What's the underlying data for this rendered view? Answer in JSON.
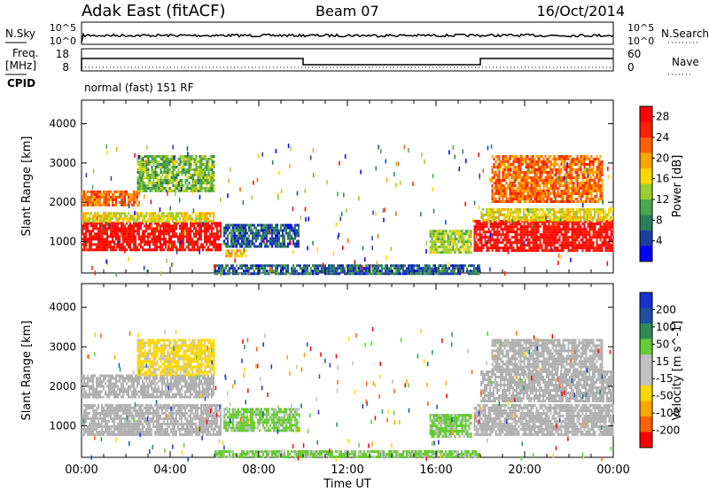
{
  "header": {
    "station": "Adak East (fitACF)",
    "beam": "Beam 07",
    "date": "16/Oct/2014"
  },
  "side_labels": {
    "nsky": "N.Sky",
    "nsearch": "N.Search",
    "freq": "Freq.",
    "freq_unit": "[MHz]",
    "cpid": "CPID",
    "nave": "Nave"
  },
  "strip_ticks": {
    "noise_left": [
      "10^5",
      "10^0"
    ],
    "noise_right": [
      "10^5",
      "10^0"
    ],
    "freq_left": [
      "18",
      "8"
    ],
    "nave_right": [
      "60",
      "0"
    ]
  },
  "cpid_text": "normal (fast) 151 RF",
  "colors": {
    "power": [
      "#0000ff",
      "#1e3fa0",
      "#2e7d5a",
      "#4ca64c",
      "#9acd32",
      "#ffd700",
      "#ffa500",
      "#ff6000",
      "#ff2000",
      "#ff0000"
    ],
    "velocity": [
      "#ff0000",
      "#ff6000",
      "#ffa500",
      "#ffd700",
      "#c0c0c0",
      "#c0c0c0",
      "#66cc33",
      "#2e8b57",
      "#1e50a0",
      "#1a2fd0"
    ],
    "ground_scatter": "#b0b0b0"
  },
  "chart_data": [
    {
      "type": "heatmap",
      "panel": "power",
      "ylabel": "Slant Range [km]",
      "xlabel": "",
      "x_ticks": [
        "00:00",
        "04:00",
        "08:00",
        "12:00",
        "16:00",
        "20:00",
        "00:00"
      ],
      "y_ticks": [
        "1000",
        "2000",
        "3000",
        "4000"
      ],
      "ylim": [
        200,
        4600
      ],
      "xlim_hours": [
        0,
        24
      ],
      "colorbar_label": "Power [dB]",
      "colorbar_ticks": [
        "4",
        "8",
        "12",
        "16",
        "20",
        "24",
        "28"
      ],
      "colorbar_range": [
        0,
        30
      ],
      "regions": [
        {
          "t0": 0.0,
          "t1": 6.3,
          "r0": 800,
          "r1": 1500,
          "level": 28
        },
        {
          "t0": 0.0,
          "t1": 6.0,
          "r0": 1500,
          "r1": 1750,
          "level": 16
        },
        {
          "t0": 0.0,
          "t1": 2.6,
          "r0": 1950,
          "r1": 2300,
          "level": 22
        },
        {
          "t0": 2.5,
          "t1": 6.0,
          "r0": 2300,
          "r1": 3200,
          "level": 12
        },
        {
          "t0": 6.4,
          "t1": 9.8,
          "r0": 850,
          "r1": 1450,
          "level": 6
        },
        {
          "t0": 6.5,
          "t1": 7.4,
          "r0": 600,
          "r1": 800,
          "level": 18
        },
        {
          "t0": 15.7,
          "t1": 17.6,
          "r0": 700,
          "r1": 1300,
          "level": 14
        },
        {
          "t0": 17.7,
          "t1": 24.0,
          "r0": 800,
          "r1": 1550,
          "level": 28
        },
        {
          "t0": 18.0,
          "t1": 24.0,
          "r0": 1550,
          "r1": 1850,
          "level": 16
        },
        {
          "t0": 18.5,
          "t1": 23.5,
          "r0": 2000,
          "r1": 3200,
          "level": 22
        },
        {
          "t0": 6.0,
          "t1": 18.0,
          "r0": 200,
          "r1": 420,
          "level": 6
        }
      ]
    },
    {
      "type": "heatmap",
      "panel": "velocity",
      "ylabel": "Slant Range [km]",
      "xlabel": "Time UT",
      "x_ticks": [
        "00:00",
        "04:00",
        "08:00",
        "12:00",
        "16:00",
        "20:00",
        "00:00"
      ],
      "y_ticks": [
        "1000",
        "2000",
        "3000",
        "4000"
      ],
      "ylim": [
        200,
        4600
      ],
      "xlim_hours": [
        0,
        24
      ],
      "colorbar_label": "Velocity [m s^-1]",
      "colorbar_ticks": [
        "200",
        "100",
        "50",
        "15",
        "-15",
        "-50",
        "-100",
        "-200"
      ],
      "colorbar_range": [
        -250,
        250
      ],
      "regions": [
        {
          "t0": 0.0,
          "t1": 6.3,
          "r0": 800,
          "r1": 1550,
          "level": 0,
          "ground": true
        },
        {
          "t0": 0.0,
          "t1": 6.0,
          "r0": 1700,
          "r1": 2300,
          "level": 0,
          "ground": true
        },
        {
          "t0": 2.5,
          "t1": 6.0,
          "r0": 2300,
          "r1": 3200,
          "level": -60
        },
        {
          "t0": 6.4,
          "t1": 9.8,
          "r0": 850,
          "r1": 1450,
          "level": 60
        },
        {
          "t0": 15.7,
          "t1": 17.6,
          "r0": 700,
          "r1": 1300,
          "level": 60
        },
        {
          "t0": 17.7,
          "t1": 24.0,
          "r0": 800,
          "r1": 1550,
          "level": 0,
          "ground": true
        },
        {
          "t0": 18.0,
          "t1": 24.0,
          "r0": 1600,
          "r1": 2400,
          "level": 0,
          "ground": true
        },
        {
          "t0": 18.5,
          "t1": 23.5,
          "r0": 2400,
          "r1": 3200,
          "level": 0,
          "ground": true
        },
        {
          "t0": 6.0,
          "t1": 18.0,
          "r0": 200,
          "r1": 380,
          "level": 60
        }
      ]
    }
  ]
}
